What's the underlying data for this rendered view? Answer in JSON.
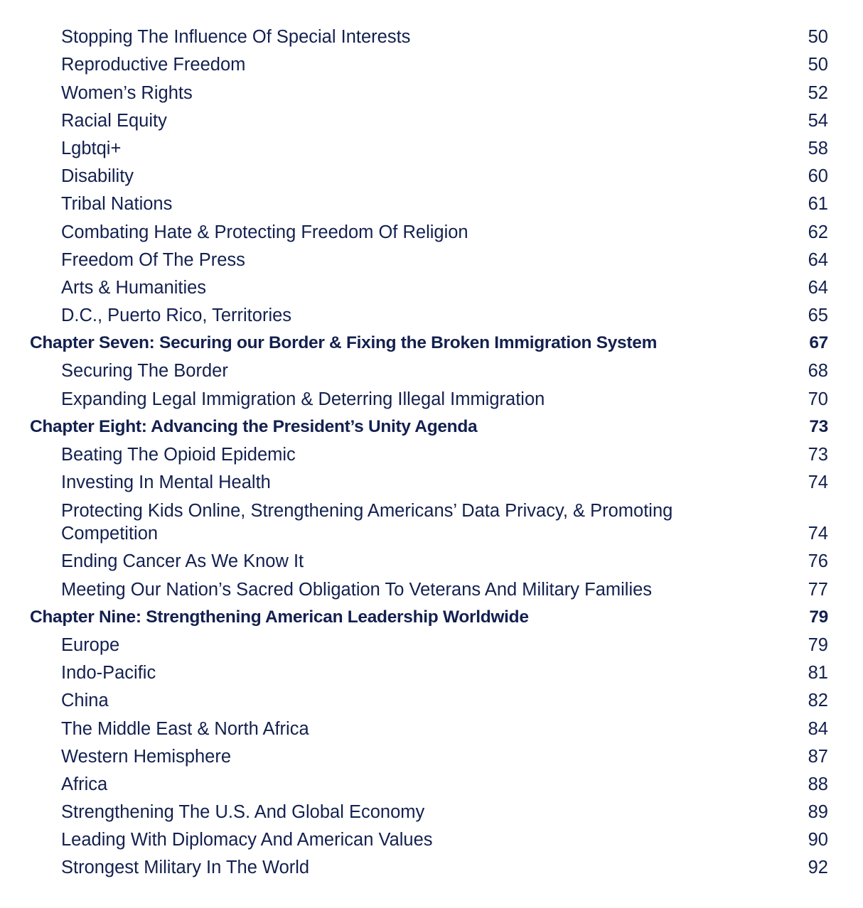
{
  "colors": {
    "text": "#13204f"
  },
  "entries": [
    {
      "level": "section",
      "title": "Stopping The Influence Of Special Interests",
      "page": "50"
    },
    {
      "level": "section",
      "title": "Reproductive Freedom",
      "page": "50"
    },
    {
      "level": "section",
      "title": "Women’s Rights",
      "page": "52"
    },
    {
      "level": "section",
      "title": "Racial Equity",
      "page": "54"
    },
    {
      "level": "section",
      "title": "Lgbtqi+",
      "page": "58"
    },
    {
      "level": "section",
      "title": "Disability",
      "page": "60"
    },
    {
      "level": "section",
      "title": "Tribal Nations",
      "page": "61"
    },
    {
      "level": "section",
      "title": "Combating Hate & Protecting Freedom Of Religion",
      "page": "62"
    },
    {
      "level": "section",
      "title": "Freedom Of The Press",
      "page": "64"
    },
    {
      "level": "section",
      "title": "Arts & Humanities",
      "page": "64"
    },
    {
      "level": "section",
      "title": "D.C., Puerto Rico, Territories",
      "page": "65"
    },
    {
      "level": "chapter",
      "title": "Chapter Seven: Securing our Border & Fixing the Broken Immigration System",
      "page": "67"
    },
    {
      "level": "section",
      "title": "Securing The Border",
      "page": "68"
    },
    {
      "level": "section",
      "title": "Expanding Legal Immigration & Deterring Illegal Immigration",
      "page": "70"
    },
    {
      "level": "chapter",
      "title": "Chapter Eight: Advancing the President’s Unity Agenda",
      "page": "73"
    },
    {
      "level": "section",
      "title": "Beating The Opioid Epidemic",
      "page": "73"
    },
    {
      "level": "section",
      "title": "Investing In Mental Health",
      "page": "74"
    },
    {
      "level": "section",
      "title": "Protecting Kids Online, Strengthening Americans’ Data Privacy, & Promoting Competition",
      "page": "74",
      "multi": true
    },
    {
      "level": "section",
      "title": "Ending Cancer As We Know It",
      "page": "76"
    },
    {
      "level": "section",
      "title": "Meeting Our Nation’s Sacred Obligation To Veterans And Military Families",
      "page": "77"
    },
    {
      "level": "chapter",
      "title": "Chapter Nine: Strengthening American Leadership Worldwide",
      "page": "79"
    },
    {
      "level": "section",
      "title": "Europe",
      "page": "79"
    },
    {
      "level": "section",
      "title": "Indo-Pacific",
      "page": "81"
    },
    {
      "level": "section",
      "title": "China",
      "page": "82"
    },
    {
      "level": "section",
      "title": "The Middle East & North Africa",
      "page": "84"
    },
    {
      "level": "section",
      "title": "Western Hemisphere",
      "page": "87"
    },
    {
      "level": "section",
      "title": "Africa",
      "page": "88"
    },
    {
      "level": "section",
      "title": "Strengthening The U.S. And Global Economy",
      "page": "89"
    },
    {
      "level": "section",
      "title": "Leading With Diplomacy And American Values",
      "page": "90"
    },
    {
      "level": "section",
      "title": "Strongest Military In The World",
      "page": "92"
    }
  ]
}
